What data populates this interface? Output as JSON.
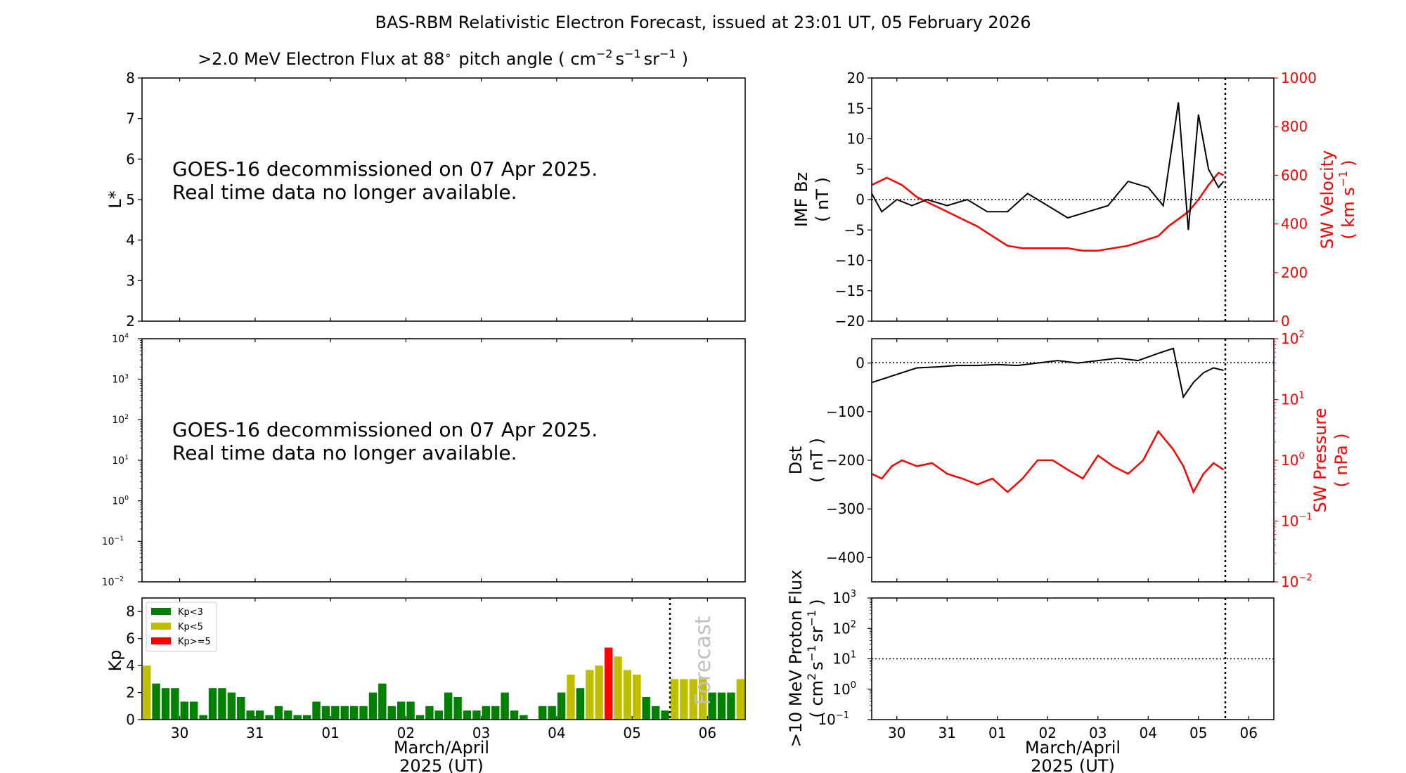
{
  "figure": {
    "title": "BAS-RBM Relativistic Electron Forecast, issued at 23:01 UT, 05 February 2026",
    "xlabel_line1": "March/April",
    "xlabel_line2": "2025 (UT)",
    "x_ticks": [
      "30",
      "31",
      "01",
      "02",
      "03",
      "04",
      "05",
      "06"
    ],
    "forecast_label": "Forecast"
  },
  "chart_data": [
    {
      "id": "flux-lstar",
      "type": "heatmap",
      "title_main": ">2.0 MeV Electron Flux at 88",
      "title_deg": "∘",
      "title_mid": "pitch angle (",
      "title_unit": "cm",
      "title_e1": "−2",
      "title_s": "s",
      "title_e2": "−1",
      "title_sr": "sr",
      "title_e3": "−1",
      "title_end": ")",
      "ylabel": "L*",
      "ylim": [
        2,
        8
      ],
      "y_ticks": [
        "2",
        "3",
        "4",
        "5",
        "6",
        "7",
        "8"
      ],
      "message_line1": "GOES-16 decommissioned on 07 Apr 2025.",
      "message_line2": "Real time data no longer available."
    },
    {
      "id": "flux-log",
      "type": "line",
      "yscale": "log",
      "ylim": [
        0.01,
        10000
      ],
      "y_ticks": [
        "10",
        "10",
        "10",
        "10",
        "10",
        "10",
        "10"
      ],
      "y_tick_exps": [
        "−2",
        "−1",
        "0",
        "1",
        "2",
        "3",
        "4"
      ],
      "message_line1": "GOES-16 decommissioned on 07 Apr 2025.",
      "message_line2": "Real time data no longer available."
    },
    {
      "id": "kp",
      "type": "bar",
      "ylabel": "Kp",
      "ylim": [
        0,
        9
      ],
      "y_ticks": [
        "0",
        "2",
        "4",
        "6",
        "8"
      ],
      "legend": [
        {
          "label": "Kp<3",
          "color": "#008000"
        },
        {
          "label": "Kp<5",
          "color": "#bfbf00"
        },
        {
          "label": "Kp>=5",
          "color": "#ff0000"
        }
      ],
      "legend_position": "top-left",
      "x_start_day": 29.5,
      "bar_hours": 3,
      "values": [
        4.0,
        2.67,
        2.33,
        2.33,
        1.33,
        1.33,
        0.33,
        2.33,
        2.33,
        2.0,
        1.67,
        0.67,
        0.67,
        0.33,
        1.0,
        0.67,
        0.33,
        0.33,
        1.33,
        1.0,
        1.0,
        1.0,
        1.0,
        1.0,
        2.0,
        2.67,
        1.0,
        1.33,
        1.33,
        0.33,
        1.0,
        0.67,
        2.0,
        1.67,
        0.67,
        0.67,
        1.0,
        1.0,
        2.0,
        0.67,
        0.33,
        0,
        1.0,
        1.0,
        2.0,
        3.33,
        2.33,
        3.67,
        4.0,
        5.33,
        4.67,
        3.67,
        3.33,
        1.67,
        1.0,
        0.67
      ],
      "forecast_values": [
        3.0,
        3.0,
        3.0,
        3.0,
        2.0,
        2.0,
        2.0,
        3.0
      ],
      "forecast_start_day": 36.5
    },
    {
      "id": "imf-sw",
      "type": "line",
      "ylabel_line1": "IMF Bz",
      "ylabel_line2": "( nT )",
      "ylim": [
        -20,
        20
      ],
      "y_ticks": [
        "−20",
        "−15",
        "−10",
        "−5",
        "0",
        "5",
        "10",
        "15",
        "20"
      ],
      "y2label_line1": "SW Velocity",
      "y2label_unit": "( km s",
      "y2label_exp": "−1",
      "y2label_end": ")",
      "y2lim": [
        0,
        1000
      ],
      "y2_ticks": [
        "0",
        "200",
        "400",
        "600",
        "800",
        "1000"
      ],
      "series": [
        {
          "name": "IMF Bz",
          "color": "#000000",
          "x": [
            29.5,
            29.7,
            30.0,
            30.3,
            30.6,
            31.0,
            31.4,
            31.8,
            32.2,
            32.6,
            33.0,
            33.4,
            33.8,
            34.2,
            34.6,
            35.0,
            35.3,
            35.6,
            35.8,
            36.0,
            36.2,
            36.4,
            36.5
          ],
          "y": [
            1,
            -2,
            0,
            -1,
            0,
            -1,
            0,
            -2,
            -2,
            1,
            -1,
            -3,
            -2,
            -1,
            3,
            2,
            -1,
            16,
            -5,
            14,
            5,
            2,
            3
          ]
        },
        {
          "name": "SW Velocity",
          "color": "#ff0000",
          "x": [
            29.5,
            29.8,
            30.1,
            30.4,
            30.7,
            31.0,
            31.3,
            31.6,
            31.9,
            32.2,
            32.5,
            32.8,
            33.1,
            33.4,
            33.7,
            34.0,
            34.3,
            34.6,
            34.9,
            35.2,
            35.4,
            35.6,
            35.8,
            36.0,
            36.2,
            36.4,
            36.5
          ],
          "y": [
            560,
            590,
            560,
            510,
            480,
            450,
            420,
            390,
            350,
            310,
            300,
            300,
            300,
            300,
            290,
            290,
            300,
            310,
            330,
            350,
            390,
            420,
            450,
            500,
            560,
            610,
            600
          ]
        }
      ],
      "now_day": 36.5
    },
    {
      "id": "dst-pressure",
      "type": "line",
      "ylabel_line1": "Dst",
      "ylabel_line2": "( nT )",
      "ylim": [
        -450,
        50
      ],
      "y_ticks": [
        "−400",
        "−300",
        "−200",
        "−100",
        "0"
      ],
      "y2label_line1": "SW Pressure",
      "y2label_line2": "( nPa )",
      "y2scale": "log",
      "y2lim": [
        0.01,
        100
      ],
      "y2_ticks": [
        "10",
        "10",
        "10",
        "10",
        "10"
      ],
      "y2_tick_exps": [
        "−2",
        "−1",
        "0",
        "1",
        "2"
      ],
      "series": [
        {
          "name": "Dst",
          "color": "#000000",
          "x": [
            29.5,
            29.8,
            30.1,
            30.4,
            30.8,
            31.2,
            31.6,
            32.0,
            32.4,
            32.8,
            33.2,
            33.6,
            34.0,
            34.4,
            34.8,
            35.2,
            35.5,
            35.7,
            35.9,
            36.1,
            36.3,
            36.5
          ],
          "y": [
            -40,
            -30,
            -20,
            -10,
            -8,
            -5,
            -5,
            -3,
            -5,
            0,
            5,
            0,
            5,
            10,
            5,
            20,
            30,
            -70,
            -40,
            -20,
            -10,
            -15
          ]
        },
        {
          "name": "SW Pressure",
          "color": "#ff0000",
          "x": [
            29.5,
            29.7,
            29.9,
            30.1,
            30.4,
            30.7,
            31.0,
            31.3,
            31.6,
            31.9,
            32.2,
            32.5,
            32.8,
            33.1,
            33.4,
            33.7,
            34.0,
            34.3,
            34.6,
            34.9,
            35.2,
            35.5,
            35.7,
            35.9,
            36.1,
            36.3,
            36.5
          ],
          "y": [
            0.6,
            0.5,
            0.8,
            1.0,
            0.8,
            0.9,
            0.6,
            0.5,
            0.4,
            0.5,
            0.3,
            0.5,
            1.0,
            1.0,
            0.7,
            0.5,
            1.2,
            0.8,
            0.6,
            1.0,
            3.0,
            1.5,
            0.8,
            0.3,
            0.6,
            0.9,
            0.7
          ]
        }
      ],
      "now_day": 36.5
    },
    {
      "id": "proton",
      "type": "line",
      "ylabel_line1": ">10 MeV Proton Flux",
      "ylabel_unit": "( cm",
      "ylabel_e1": "2",
      "ylabel_s": "s",
      "ylabel_e2": "−1",
      "ylabel_sr": "sr",
      "ylabel_e3": "−1",
      "ylabel_end": ")",
      "yscale": "log",
      "ylim": [
        0.1,
        1000
      ],
      "y_ticks": [
        "10",
        "10",
        "10",
        "10",
        "10"
      ],
      "y_tick_exps": [
        "−1",
        "0",
        "1",
        "2",
        "3"
      ],
      "threshold": 10,
      "now_day": 36.5
    }
  ]
}
